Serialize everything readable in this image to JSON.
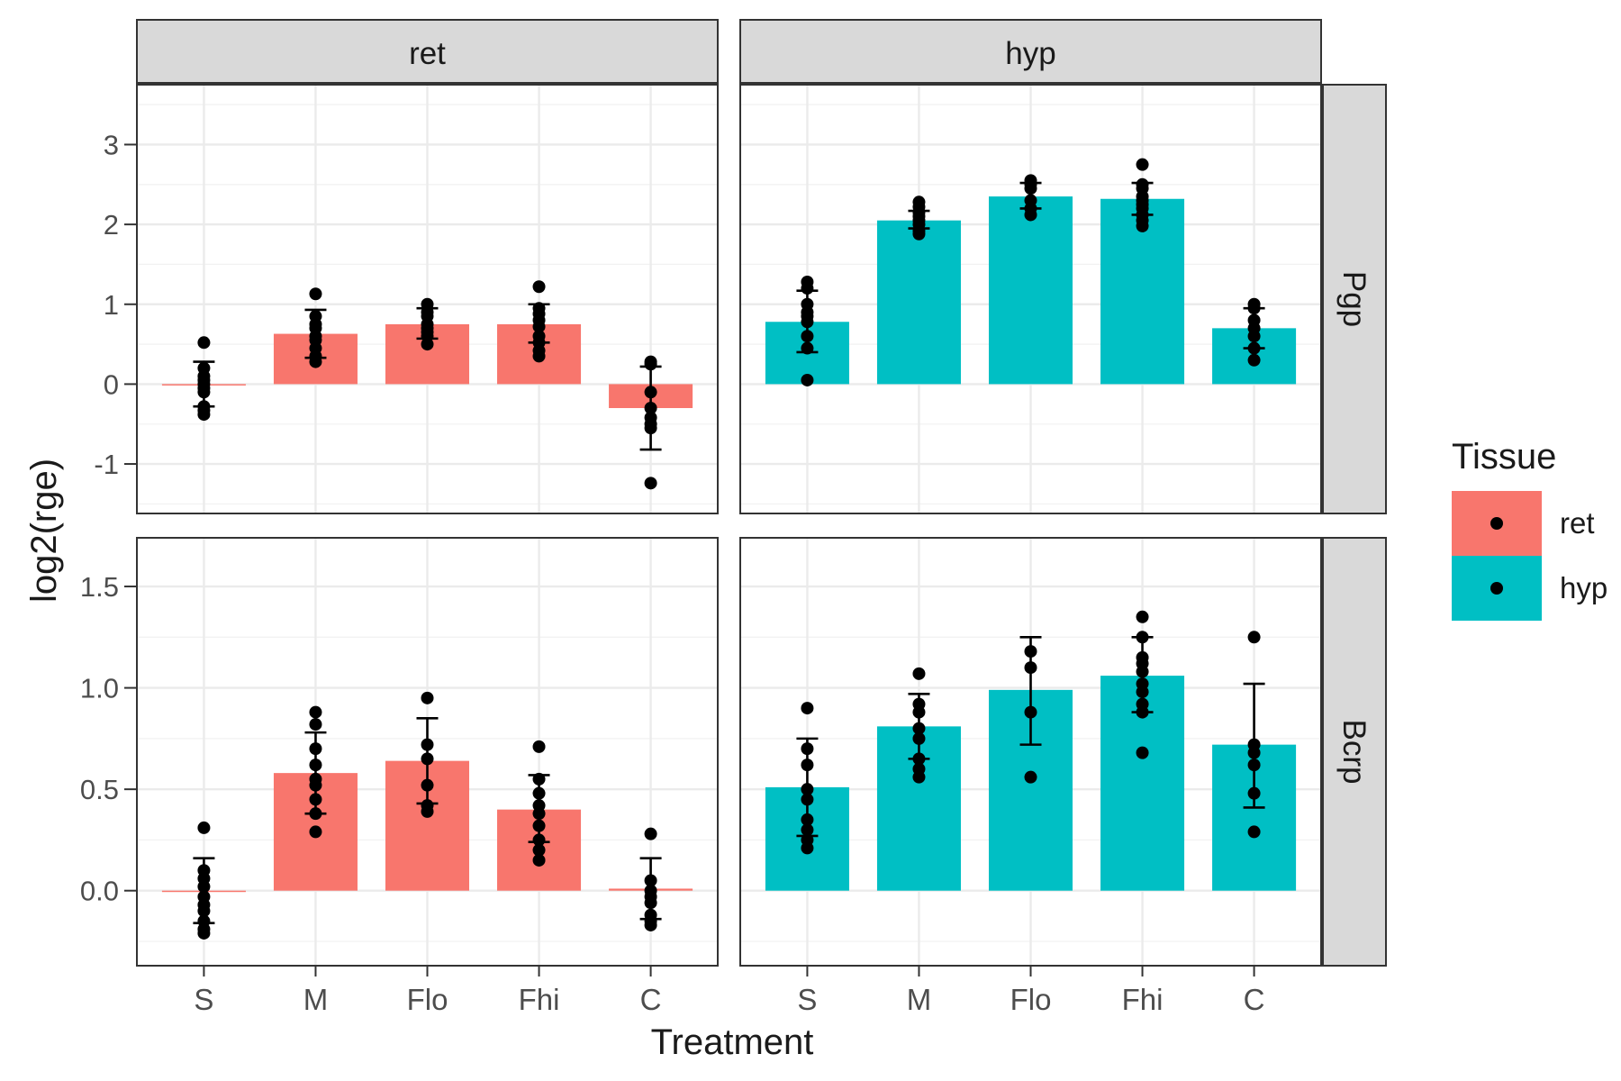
{
  "chart_data": {
    "type": "bar",
    "facet_columns": [
      "ret",
      "hyp"
    ],
    "facet_rows": [
      "Pgp",
      "Bcrp"
    ],
    "categories": [
      "S",
      "M",
      "Flo",
      "Fhi",
      "C"
    ],
    "xlabel": "Treatment",
    "ylabel": "log2(rge)",
    "grid": true,
    "legend": {
      "title": "Tissue",
      "position": "right",
      "entries": [
        {
          "label": "ret",
          "color": "#F8766D"
        },
        {
          "label": "hyp",
          "color": "#00BFC4"
        }
      ]
    },
    "rows": [
      {
        "name": "Pgp",
        "ylim": [
          -1.62,
          3.75
        ],
        "yticks": [
          -1,
          0,
          1,
          2,
          3
        ],
        "ytick_labels": [
          "-1",
          "0",
          "1",
          "2",
          "3"
        ],
        "panels": [
          {
            "tissue": "ret",
            "means": [
              0.0,
              0.63,
              0.75,
              0.75,
              -0.3
            ],
            "errors": [
              [
                -0.28,
                0.28
              ],
              [
                0.33,
                0.93
              ],
              [
                0.57,
                0.95
              ],
              [
                0.52,
                1.0
              ],
              [
                -0.82,
                0.22
              ]
            ],
            "points": [
              [
                0.52,
                0.2,
                0.1,
                0.05,
                0.0,
                -0.05,
                -0.1,
                -0.28,
                -0.33,
                -0.38
              ],
              [
                1.13,
                0.85,
                0.75,
                0.7,
                0.6,
                0.55,
                0.45,
                0.35,
                0.28
              ],
              [
                1.0,
                0.9,
                0.85,
                0.75,
                0.7,
                0.65,
                0.6,
                0.5
              ],
              [
                1.22,
                0.95,
                0.88,
                0.8,
                0.72,
                0.6,
                0.52,
                0.42,
                0.35
              ],
              [
                0.28,
                0.25,
                -0.1,
                -0.3,
                -0.42,
                -0.5,
                -0.55,
                -1.24
              ]
            ]
          },
          {
            "tissue": "hyp",
            "means": [
              0.78,
              2.05,
              2.35,
              2.32,
              0.7
            ],
            "errors": [
              [
                0.4,
                1.17
              ],
              [
                1.95,
                2.17
              ],
              [
                2.2,
                2.52
              ],
              [
                2.12,
                2.52
              ],
              [
                0.45,
                0.95
              ]
            ],
            "points": [
              [
                1.28,
                1.2,
                1.0,
                0.9,
                0.85,
                0.78,
                0.6,
                0.45,
                0.05
              ],
              [
                2.28,
                2.22,
                2.15,
                2.1,
                2.05,
                2.0,
                1.92,
                1.88
              ],
              [
                2.55,
                2.5,
                2.45,
                2.3,
                2.2,
                2.12
              ],
              [
                2.75,
                2.5,
                2.45,
                2.35,
                2.3,
                2.25,
                2.2,
                2.12,
                2.05,
                1.98
              ],
              [
                1.0,
                0.95,
                0.8,
                0.7,
                0.6,
                0.45,
                0.3
              ]
            ]
          }
        ]
      },
      {
        "name": "Bcrp",
        "ylim": [
          -0.37,
          1.74
        ],
        "yticks": [
          0.0,
          0.5,
          1.0,
          1.5
        ],
        "ytick_labels": [
          "0.0",
          "0.5",
          "1.0",
          "1.5"
        ],
        "panels": [
          {
            "tissue": "ret",
            "means": [
              0.0,
              0.58,
              0.64,
              0.4,
              0.01
            ],
            "errors": [
              [
                -0.16,
                0.16
              ],
              [
                0.38,
                0.78
              ],
              [
                0.43,
                0.85
              ],
              [
                0.24,
                0.57
              ],
              [
                -0.14,
                0.16
              ]
            ],
            "points": [
              [
                0.31,
                0.1,
                0.06,
                0.02,
                -0.03,
                -0.07,
                -0.1,
                -0.15,
                -0.19,
                -0.21
              ],
              [
                0.88,
                0.82,
                0.7,
                0.62,
                0.55,
                0.52,
                0.45,
                0.38,
                0.29
              ],
              [
                0.95,
                0.72,
                0.65,
                0.52,
                0.42,
                0.39
              ],
              [
                0.71,
                0.55,
                0.48,
                0.42,
                0.38,
                0.32,
                0.25,
                0.2,
                0.15
              ],
              [
                0.28,
                0.05,
                0.0,
                -0.03,
                -0.06,
                -0.12,
                -0.15,
                -0.17
              ]
            ]
          },
          {
            "tissue": "hyp",
            "means": [
              0.51,
              0.81,
              0.99,
              1.06,
              0.72
            ],
            "errors": [
              [
                0.27,
                0.75
              ],
              [
                0.65,
                0.97
              ],
              [
                0.72,
                1.25
              ],
              [
                0.88,
                1.25
              ],
              [
                0.41,
                1.02
              ]
            ],
            "points": [
              [
                0.9,
                0.7,
                0.62,
                0.5,
                0.45,
                0.35,
                0.3,
                0.25,
                0.21
              ],
              [
                1.07,
                0.92,
                0.88,
                0.8,
                0.75,
                0.65,
                0.6,
                0.56
              ],
              [
                1.18,
                1.1,
                0.88,
                0.56
              ],
              [
                1.35,
                1.25,
                1.15,
                1.12,
                1.08,
                1.02,
                0.98,
                0.92,
                0.88,
                0.68
              ],
              [
                1.25,
                0.72,
                0.68,
                0.62,
                0.48,
                0.29
              ]
            ]
          }
        ]
      }
    ]
  }
}
